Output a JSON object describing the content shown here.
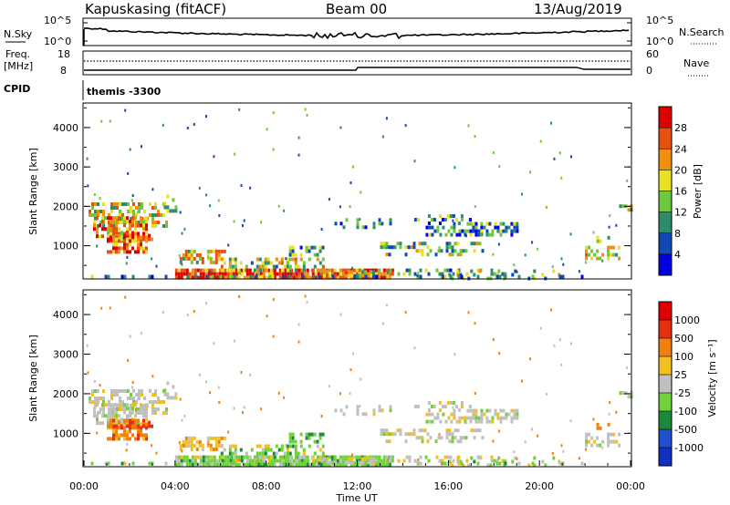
{
  "header": {
    "station": "Kapuskasing (fitACF)",
    "beam": "Beam 00",
    "date": "13/Aug/2019"
  },
  "panel_labels": {
    "nsky": "N.Sky",
    "freq_line1": "Freq.",
    "freq_line2": "[MHz]",
    "cpid": "CPID",
    "nsearch": "N.Search",
    "nave": "Nave",
    "cpid_text": "themis -3300"
  },
  "chart_data": [
    {
      "type": "line",
      "name": "noise",
      "left_ticks": [
        "10^5",
        "10^0"
      ],
      "right_ticks": [
        "10^5",
        "10^0"
      ],
      "approx_level": "10^3 to 10^4"
    },
    {
      "type": "line",
      "name": "frequency",
      "left_ticks": [
        "18",
        "8"
      ],
      "right_ticks": [
        "60",
        "0"
      ],
      "freq_mhz": 10,
      "nave_dotted": 45
    },
    {
      "type": "heatmap",
      "name": "power",
      "xlabel": "",
      "ylabel": "Slant Range [km]",
      "y_ticks": [
        1000,
        2000,
        3000,
        4000
      ],
      "ylim": [
        180,
        4600
      ],
      "colorbar_label": "Power [dB]",
      "colorbar_ticks": [
        4,
        8,
        12,
        16,
        20,
        24,
        28
      ],
      "colorbar_colors": [
        "#0000e0",
        "#1048b8",
        "#2e8c6e",
        "#6cc83c",
        "#e8e020",
        "#f09010",
        "#e85010",
        "#e00000"
      ]
    },
    {
      "type": "heatmap",
      "name": "velocity",
      "xlabel": "Time UT",
      "ylabel": "Slant Range [km]",
      "x_ticks": [
        "00:00",
        "04:00",
        "08:00",
        "12:00",
        "16:00",
        "20:00",
        "00:00"
      ],
      "y_ticks": [
        1000,
        2000,
        3000,
        4000
      ],
      "ylim": [
        180,
        4600
      ],
      "colorbar_label": "Velocity [m s⁻¹]",
      "colorbar_ticks": [
        "1000",
        "500",
        "100",
        "25",
        "-25",
        "-100",
        "-500",
        "-1000"
      ],
      "colorbar_colors": [
        "#1030c0",
        "#2050d0",
        "#1a8a3a",
        "#6fd23a",
        "#c0c0c0",
        "#f0c020",
        "#f08010",
        "#e83010",
        "#e00000"
      ]
    }
  ]
}
